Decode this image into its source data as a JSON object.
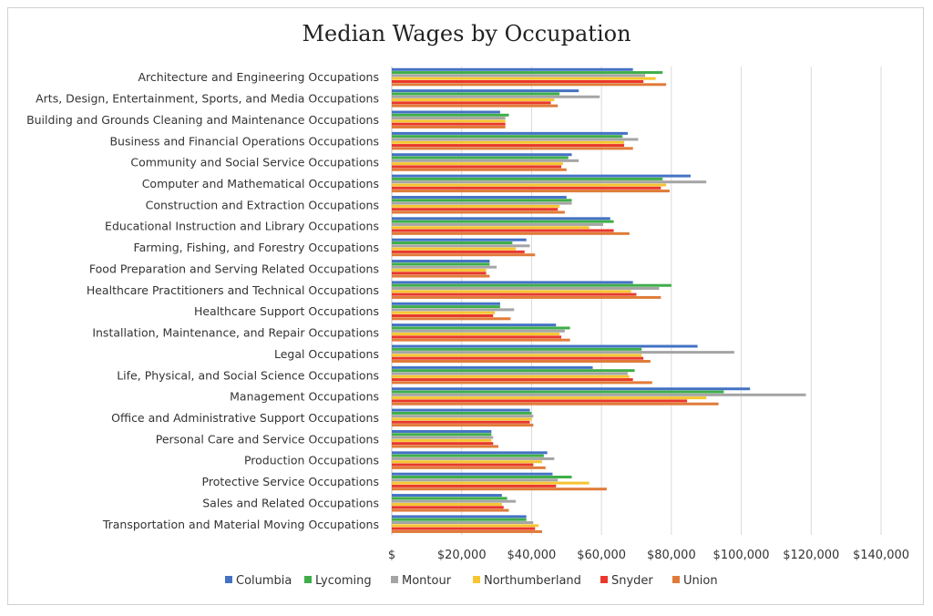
{
  "chart_data": {
    "type": "bar",
    "orientation": "horizontal",
    "title": "Median Wages by Occupation",
    "xlabel": "",
    "ylabel": "",
    "xlim": [
      0,
      140000
    ],
    "x_ticks": [
      0,
      20000,
      40000,
      60000,
      80000,
      100000,
      120000,
      140000
    ],
    "x_tick_labels": [
      "$",
      "$20,000",
      "$40,000",
      "$60,000",
      "$80,000",
      "$100,000",
      "$120,000",
      "$140,000"
    ],
    "grid": "vertical",
    "legend_position": "bottom",
    "categories": [
      "Architecture and Engineering Occupations",
      "Arts, Design, Entertainment, Sports, and Media Occupations",
      "Building and Grounds Cleaning and Maintenance Occupations",
      "Business and Financial Operations Occupations",
      "Community and Social Service Occupations",
      "Computer and Mathematical Occupations",
      "Construction and Extraction Occupations",
      "Educational Instruction and Library Occupations",
      "Farming, Fishing, and Forestry Occupations",
      "Food Preparation and Serving Related Occupations",
      "Healthcare Practitioners and Technical Occupations",
      "Healthcare Support Occupations",
      "Installation, Maintenance, and Repair Occupations",
      "Legal Occupations",
      "Life, Physical, and Social Science Occupations",
      "Management Occupations",
      "Office and Administrative Support Occupations",
      "Personal Care and Service Occupations",
      "Production Occupations",
      "Protective Service Occupations",
      "Sales and Related Occupations",
      "Transportation and Material Moving Occupations"
    ],
    "series": [
      {
        "name": "Columbia",
        "color": "#4472c4",
        "values": [
          69000,
          53500,
          31000,
          67500,
          51500,
          85500,
          50000,
          62500,
          38500,
          28000,
          69000,
          31000,
          47000,
          87500,
          57500,
          102500,
          39500,
          28500,
          44500,
          46000,
          31500,
          38500
        ]
      },
      {
        "name": "Lycoming",
        "color": "#3fae49",
        "values": [
          77500,
          48000,
          33500,
          66000,
          50500,
          77500,
          51500,
          63500,
          34500,
          28000,
          80000,
          31000,
          51000,
          71500,
          69500,
          95000,
          40000,
          28500,
          43500,
          51500,
          33000,
          38500
        ]
      },
      {
        "name": "Montour",
        "color": "#a5a5a5",
        "values": [
          72500,
          59500,
          32500,
          70500,
          53500,
          90000,
          51500,
          60500,
          39500,
          30000,
          76500,
          35000,
          49500,
          98000,
          67500,
          118500,
          40500,
          29000,
          46500,
          47500,
          35500,
          40500
        ]
      },
      {
        "name": "Northumberland",
        "color": "#f7c532",
        "values": [
          75500,
          46500,
          32500,
          66500,
          49000,
          78500,
          48000,
          56500,
          35500,
          27000,
          68500,
          29500,
          48000,
          71500,
          68000,
          90000,
          40000,
          28500,
          43000,
          56500,
          31500,
          42000
        ]
      },
      {
        "name": "Snyder",
        "color": "#e8382b",
        "values": [
          72000,
          45500,
          32500,
          66500,
          48500,
          77000,
          47500,
          63500,
          38000,
          27000,
          70000,
          29000,
          48500,
          72000,
          69000,
          84500,
          39500,
          29000,
          40500,
          47000,
          32000,
          41000
        ]
      },
      {
        "name": "Union",
        "color": "#e07b39",
        "values": [
          78500,
          47500,
          32500,
          69000,
          50000,
          79500,
          49500,
          68000,
          41000,
          28000,
          77000,
          34000,
          51000,
          74000,
          74500,
          93500,
          40500,
          30500,
          44000,
          61500,
          33500,
          43000
        ]
      }
    ]
  }
}
